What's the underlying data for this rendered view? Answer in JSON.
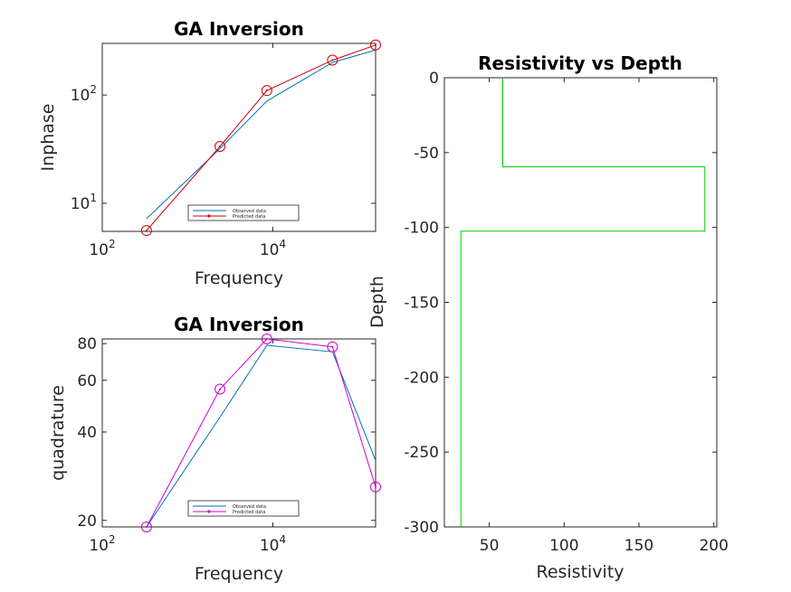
{
  "chart_data": [
    {
      "id": "inphase",
      "type": "line",
      "title": "GA Inversion",
      "xlabel": "Frequency",
      "ylabel": "Inphase",
      "xscale": "log",
      "yscale": "log",
      "xlim": [
        100,
        160000
      ],
      "ylim": [
        5.5,
        300
      ],
      "xticks": [
        {
          "base": "10",
          "exp": "2",
          "value": 100
        },
        {
          "base": "10",
          "exp": "4",
          "value": 10000
        }
      ],
      "yticks": [
        {
          "base": "10",
          "exp": "1",
          "value": 10
        },
        {
          "base": "10",
          "exp": "2",
          "value": 100
        }
      ],
      "x": [
        330,
        2400,
        8500,
        50000,
        160000
      ],
      "series": [
        {
          "name": "Observed data",
          "color": "#0072BD",
          "marker": "none",
          "values": [
            7.2,
            32,
            88,
            200,
            260
          ]
        },
        {
          "name": "Predicted data",
          "color": "#D00000",
          "marker": "circle",
          "values": [
            5.6,
            33.5,
            110,
            210,
            290
          ]
        }
      ],
      "legend": "bottom-right"
    },
    {
      "id": "quadrature",
      "type": "line",
      "title": "GA Inversion",
      "xlabel": "Frequency",
      "ylabel": "quadrature",
      "xscale": "log",
      "yscale": "log",
      "xlim": [
        100,
        160000
      ],
      "ylim": [
        19,
        83
      ],
      "xticks": [
        {
          "base": "10",
          "exp": "2",
          "value": 100
        },
        {
          "base": "10",
          "exp": "4",
          "value": 10000
        }
      ],
      "yticks": [
        {
          "label": "20",
          "value": 20
        },
        {
          "label": "40",
          "value": 40
        },
        {
          "label": "60",
          "value": 60
        },
        {
          "label": "80",
          "value": 80
        }
      ],
      "x": [
        330,
        2400,
        8500,
        50000,
        160000
      ],
      "series": [
        {
          "name": "Observed data",
          "color": "#0072BD",
          "marker": "none",
          "values": [
            19,
            45,
            79,
            75,
            32
          ]
        },
        {
          "name": "Predicted data",
          "color": "#CC00CC",
          "marker": "circle",
          "values": [
            19,
            56,
            83,
            78,
            26
          ]
        }
      ],
      "legend": "bottom-right"
    },
    {
      "id": "resistivity",
      "type": "line",
      "title": "Resistivity vs Depth",
      "xlabel": "Resistivity",
      "ylabel": "Depth",
      "xlim": [
        20,
        202
      ],
      "ylim": [
        -300,
        0
      ],
      "xticks": [
        50,
        100,
        150,
        200
      ],
      "yticks": [
        0,
        -50,
        -100,
        -150,
        -200,
        -250,
        -300
      ],
      "series": [
        {
          "color": "#00CC00",
          "x": [
            59,
            59,
            194,
            194,
            31,
            31
          ],
          "y": [
            0,
            -59.5,
            -59.5,
            -102.5,
            -102.5,
            -300
          ]
        }
      ]
    }
  ]
}
